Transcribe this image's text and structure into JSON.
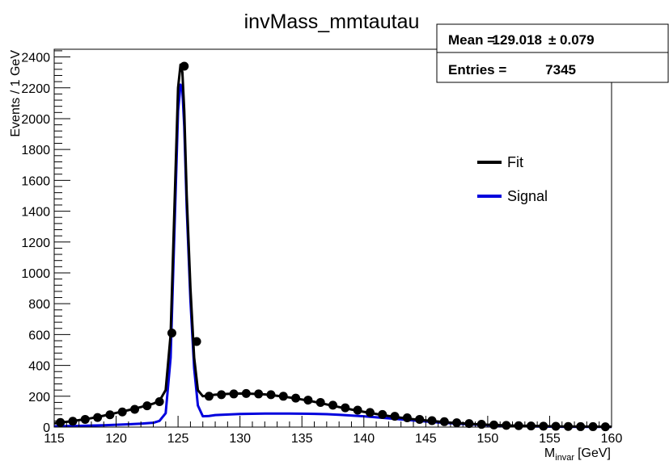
{
  "chart_data": {
    "type": "line",
    "title": "invMass_mmtautau",
    "xlabel_main": "M",
    "xlabel_sub": "invar",
    "xlabel_unit": "[GeV]",
    "ylabel": "Events / 1 GeV",
    "xlim": [
      115,
      160
    ],
    "ylim": [
      0,
      2450
    ],
    "xticks": [
      115,
      120,
      125,
      130,
      135,
      140,
      145,
      150,
      155,
      160
    ],
    "xtick_labels": [
      "115",
      "120",
      "125",
      "130",
      "135",
      "140",
      "145",
      "150",
      "155",
      "160"
    ],
    "yticks": [
      0,
      200,
      400,
      600,
      800,
      1000,
      1200,
      1400,
      1600,
      1800,
      2000,
      2200,
      2400
    ],
    "ytick_labels": [
      "0",
      "200",
      "400",
      "600",
      "800",
      "1000",
      "1200",
      "1400",
      "1600",
      "1800",
      "2000",
      "2200",
      "2400"
    ],
    "grid": false,
    "stats": {
      "mean_label": "Mean =",
      "mean_value": "129.018",
      "mean_error": "± 0.079",
      "entries_label": "Entries =",
      "entries_value": "7345"
    },
    "legend": {
      "placement": "right",
      "entries": [
        {
          "name": "Fit",
          "color": "#000000"
        },
        {
          "name": "Signal",
          "color": "#0000dd"
        }
      ]
    },
    "series": [
      {
        "name": "Data",
        "kind": "points",
        "color": "#000000",
        "x": [
          115.5,
          116.5,
          117.5,
          118.5,
          119.5,
          120.5,
          121.5,
          122.5,
          123.5,
          124.5,
          125.5,
          126.5,
          127.5,
          128.5,
          129.5,
          130.5,
          131.5,
          132.5,
          133.5,
          134.5,
          135.5,
          136.5,
          137.5,
          138.5,
          139.5,
          140.5,
          141.5,
          142.5,
          143.5,
          144.5,
          145.5,
          146.5,
          147.5,
          148.5,
          149.5,
          150.5,
          151.5,
          152.5,
          153.5,
          154.5,
          155.5,
          156.5,
          157.5,
          158.5,
          159.5
        ],
        "y": [
          30,
          38,
          50,
          62,
          80,
          98,
          115,
          138,
          165,
          610,
          2340,
          555,
          200,
          210,
          215,
          218,
          215,
          210,
          200,
          188,
          175,
          160,
          142,
          125,
          110,
          95,
          82,
          70,
          60,
          50,
          42,
          35,
          28,
          23,
          18,
          14,
          11,
          9,
          7,
          6,
          5,
          4,
          3,
          3,
          2
        ]
      },
      {
        "name": "Fit",
        "kind": "curve",
        "color": "#000000",
        "x": [
          115,
          116,
          117,
          118,
          119,
          120,
          121,
          122,
          123,
          123.5,
          124,
          124.4,
          124.7,
          125,
          125.2,
          125.35,
          125.5,
          125.7,
          126,
          126.3,
          126.6,
          127,
          127.5,
          128,
          129,
          130,
          131,
          132,
          133,
          134,
          135,
          136,
          137,
          138,
          139,
          140,
          141,
          142,
          143,
          144,
          145,
          146,
          147,
          148,
          149,
          150,
          152,
          154,
          156,
          158,
          160
        ],
        "y": [
          25,
          34,
          45,
          58,
          74,
          92,
          110,
          130,
          152,
          170,
          240,
          600,
          1400,
          2200,
          2350,
          2300,
          2050,
          1500,
          900,
          450,
          240,
          200,
          205,
          210,
          215,
          218,
          216,
          212,
          203,
          192,
          179,
          164,
          147,
          130,
          114,
          99,
          85,
          72,
          61,
          51,
          43,
          36,
          29,
          24,
          19,
          15,
          10,
          7,
          4,
          3,
          2
        ]
      },
      {
        "name": "Signal",
        "kind": "curve",
        "color": "#0000dd",
        "x": [
          115,
          117,
          119,
          121,
          122,
          123,
          123.5,
          124,
          124.4,
          124.7,
          125,
          125.2,
          125.35,
          125.5,
          125.7,
          126,
          126.3,
          126.6,
          127,
          127.5,
          128,
          130,
          132,
          134,
          136,
          137,
          138,
          140,
          142,
          144,
          146,
          148,
          150,
          152,
          154,
          156,
          158,
          160
        ],
        "y": [
          5,
          8,
          12,
          18,
          22,
          28,
          40,
          90,
          450,
          1250,
          2050,
          2220,
          2180,
          1950,
          1420,
          820,
          380,
          140,
          70,
          72,
          78,
          85,
          88,
          88,
          86,
          84,
          80,
          70,
          57,
          43,
          30,
          20,
          12,
          7,
          4,
          2,
          1,
          1
        ]
      }
    ]
  }
}
